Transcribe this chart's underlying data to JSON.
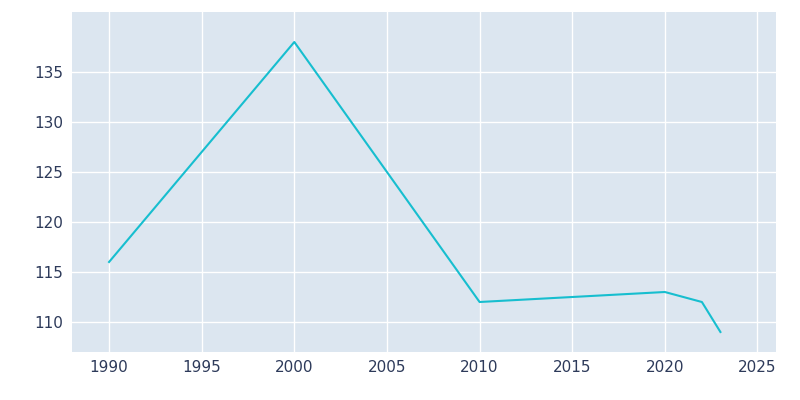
{
  "years": [
    1990,
    2000,
    2010,
    2020,
    2022,
    2023
  ],
  "population": [
    116,
    138,
    112,
    113,
    112,
    109
  ],
  "line_color": "#17becf",
  "axes_background_color": "#dce6f0",
  "figure_background_color": "#ffffff",
  "grid_color": "#ffffff",
  "xlim": [
    1988,
    2026
  ],
  "ylim": [
    107,
    141
  ],
  "yticks": [
    110,
    115,
    120,
    125,
    130,
    135
  ],
  "xticks": [
    1990,
    1995,
    2000,
    2005,
    2010,
    2015,
    2020,
    2025
  ],
  "linewidth": 1.5,
  "tick_label_color": "#2d3a5a",
  "tick_label_fontsize": 11
}
